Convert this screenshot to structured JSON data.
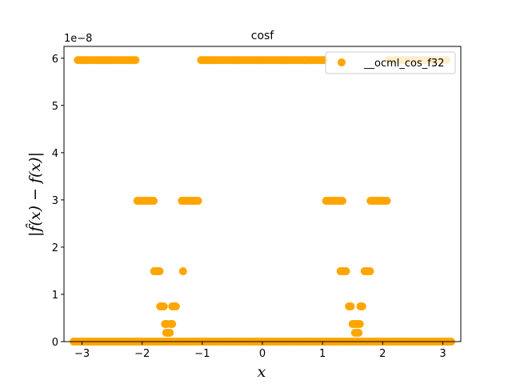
{
  "chart_data": {
    "type": "scatter",
    "title": "cosf",
    "xlabel": "x",
    "ylabel": "|f̂(x) − f(x)|",
    "offset_label": "1e−8",
    "xlim": [
      -3.3,
      3.3
    ],
    "ylim": [
      0,
      6.25
    ],
    "xticks": [
      -3,
      -2,
      -1,
      0,
      1,
      2,
      3
    ],
    "xtick_labels": [
      "−3",
      "−2",
      "−1",
      "0",
      "1",
      "2",
      "3"
    ],
    "yticks": [
      0,
      1,
      2,
      3,
      4,
      5,
      6
    ],
    "ytick_labels": [
      "0",
      "1",
      "2",
      "3",
      "4",
      "5",
      "6"
    ],
    "legend_position": "top-right",
    "series": [
      {
        "name": "__ocml_cos_f32",
        "color": "#ffa500",
        "groups": [
          {
            "y": 0.0,
            "x_from": -3.14,
            "x_to": 3.14,
            "step": 0.04
          },
          {
            "y": 5.96,
            "x_from": -3.07,
            "x_to": -2.1,
            "step": 0.04
          },
          {
            "y": 5.96,
            "x_from": -1.02,
            "x_to": 1.02,
            "step": 0.04
          },
          {
            "y": 5.96,
            "x_from": 2.1,
            "x_to": 3.07,
            "step": 0.04
          },
          {
            "y": 2.98,
            "x_from": -2.08,
            "x_to": -1.8,
            "step": 0.03
          },
          {
            "y": 2.98,
            "x_from": -1.34,
            "x_to": -1.06,
            "step": 0.03
          },
          {
            "y": 2.98,
            "x_from": 1.06,
            "x_to": 1.34,
            "step": 0.03
          },
          {
            "y": 2.98,
            "x_from": 1.8,
            "x_to": 2.08,
            "step": 0.03
          },
          {
            "y": 1.49,
            "x_from": -1.8,
            "x_to": -1.7,
            "step": 0.03
          },
          {
            "y": 1.49,
            "x_from": -1.32,
            "x_to": -1.32,
            "step": 0.03
          },
          {
            "y": 1.49,
            "x_from": 1.3,
            "x_to": 1.4,
            "step": 0.03
          },
          {
            "y": 1.49,
            "x_from": 1.7,
            "x_to": 1.8,
            "step": 0.03
          },
          {
            "y": 0.745,
            "x_from": -1.7,
            "x_to": -1.63,
            "step": 0.03
          },
          {
            "y": 0.745,
            "x_from": -1.5,
            "x_to": -1.44,
            "step": 0.03
          },
          {
            "y": 0.745,
            "x_from": 1.44,
            "x_to": 1.47,
            "step": 0.03
          },
          {
            "y": 0.745,
            "x_from": 1.63,
            "x_to": 1.66,
            "step": 0.03
          },
          {
            "y": 0.373,
            "x_from": -1.62,
            "x_to": -1.59,
            "step": 0.03
          },
          {
            "y": 0.373,
            "x_from": -1.53,
            "x_to": -1.5,
            "step": 0.03
          },
          {
            "y": 0.373,
            "x_from": 1.5,
            "x_to": 1.62,
            "step": 0.03
          },
          {
            "y": 0.186,
            "x_from": -1.6,
            "x_to": -1.54,
            "step": 0.03
          },
          {
            "y": 0.186,
            "x_from": 1.54,
            "x_to": 1.6,
            "step": 0.03
          }
        ]
      }
    ]
  }
}
